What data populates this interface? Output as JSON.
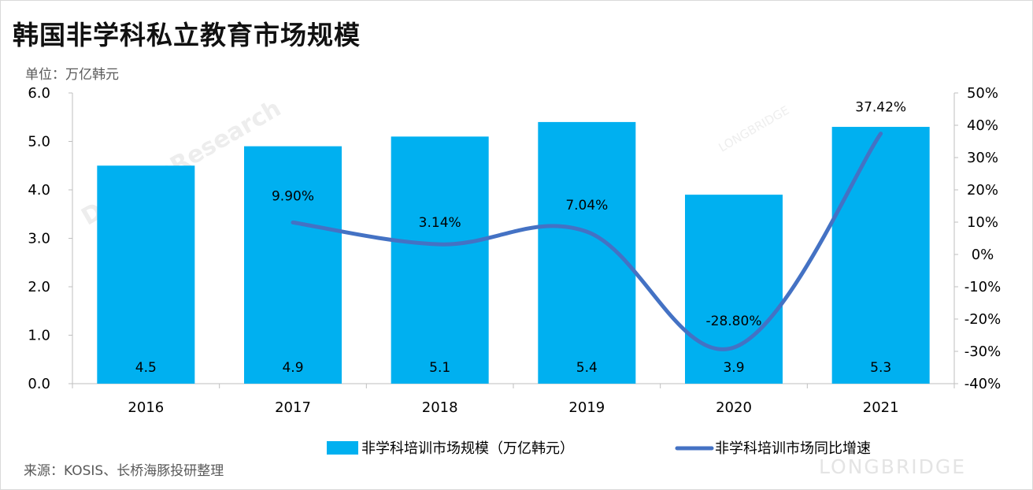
{
  "title": "韩国非学科私立教育市场规模",
  "unit_label": "单位：万亿韩元",
  "source": "来源：KOSIS、长桥海豚投研整理",
  "brand_watermark": "LONGBRIDGE",
  "watermark_text": "DolphinResearch",
  "watermark_small": "LONGBRIDGE",
  "colors": {
    "bar": "#00b0f0",
    "line": "#4472c4"
  },
  "chart_data": {
    "type": "bar+line",
    "title": "韩国非学科私立教育市场规模",
    "categories": [
      "2016",
      "2017",
      "2018",
      "2019",
      "2020",
      "2021"
    ],
    "series": [
      {
        "name": "非学科培训市场规模（万亿韩元）",
        "type": "bar",
        "axis": "left",
        "values": [
          4.5,
          4.9,
          5.1,
          5.4,
          3.9,
          5.3
        ],
        "labels": [
          "4.5",
          "4.9",
          "5.1",
          "5.4",
          "3.9",
          "5.3"
        ]
      },
      {
        "name": "非学科培训市场同比增速",
        "type": "line",
        "axis": "right",
        "values": [
          null,
          9.9,
          3.14,
          7.04,
          -28.8,
          37.42
        ],
        "labels": [
          "",
          "9.90%",
          "3.14%",
          "7.04%",
          "-28.80%",
          "37.42%"
        ]
      }
    ],
    "y_left": {
      "range": [
        0,
        6
      ],
      "ticks": [
        "0.0",
        "1.0",
        "2.0",
        "3.0",
        "4.0",
        "5.0",
        "6.0"
      ]
    },
    "y_right": {
      "range": [
        -40,
        50
      ],
      "ticks": [
        "-40%",
        "-30%",
        "-20%",
        "-10%",
        "0%",
        "10%",
        "20%",
        "30%",
        "40%",
        "50%"
      ]
    },
    "legend": {
      "position": "bottom",
      "items": [
        "非学科培训市场规模（万亿韩元）",
        "非学科培训市场同比增速"
      ]
    },
    "grid": false
  }
}
